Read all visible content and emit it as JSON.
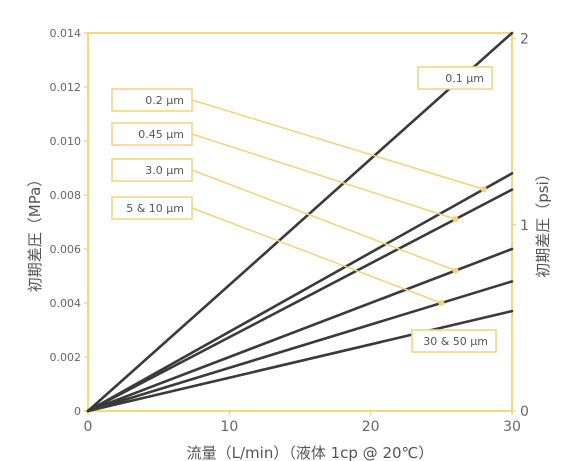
{
  "colors": {
    "frame": "#f2d97a",
    "line": "#3a3a3a",
    "label_box": "#f3d27a",
    "text": "#555555"
  },
  "chart_data": {
    "type": "line",
    "title": "",
    "xlabel": "流量（L/min）（液体 1cp @ 20℃）",
    "ylabel": "初期差圧（MPa）",
    "ylabel_right": "初期差圧（psi）",
    "xlim": [
      0,
      30
    ],
    "ylim": [
      0,
      0.014
    ],
    "ylim_right": [
      0,
      2.03
    ],
    "x_ticks": [
      "0",
      "10",
      "20",
      "30"
    ],
    "y_ticks": [
      "0",
      "0.002",
      "0.004",
      "0.006",
      "0.008",
      "0.010",
      "0.012",
      "0.014"
    ],
    "y_ticks_right": [
      "0",
      "1",
      "2"
    ],
    "grid": false,
    "series": [
      {
        "name": "0.1 μm",
        "values": [
          [
            0,
            0
          ],
          [
            30,
            0.014
          ]
        ]
      },
      {
        "name": "0.2 μm",
        "values": [
          [
            0,
            0
          ],
          [
            30,
            0.0088
          ]
        ]
      },
      {
        "name": "0.45 μm",
        "values": [
          [
            0,
            0
          ],
          [
            30,
            0.0082
          ]
        ]
      },
      {
        "name": "3.0 μm",
        "values": [
          [
            0,
            0
          ],
          [
            30,
            0.006
          ]
        ]
      },
      {
        "name": "5 & 10 μm",
        "values": [
          [
            0,
            0
          ],
          [
            30,
            0.0048
          ]
        ]
      },
      {
        "name": "30 & 50 μm",
        "values": [
          [
            0,
            0
          ],
          [
            30,
            0.0037
          ]
        ]
      }
    ]
  }
}
